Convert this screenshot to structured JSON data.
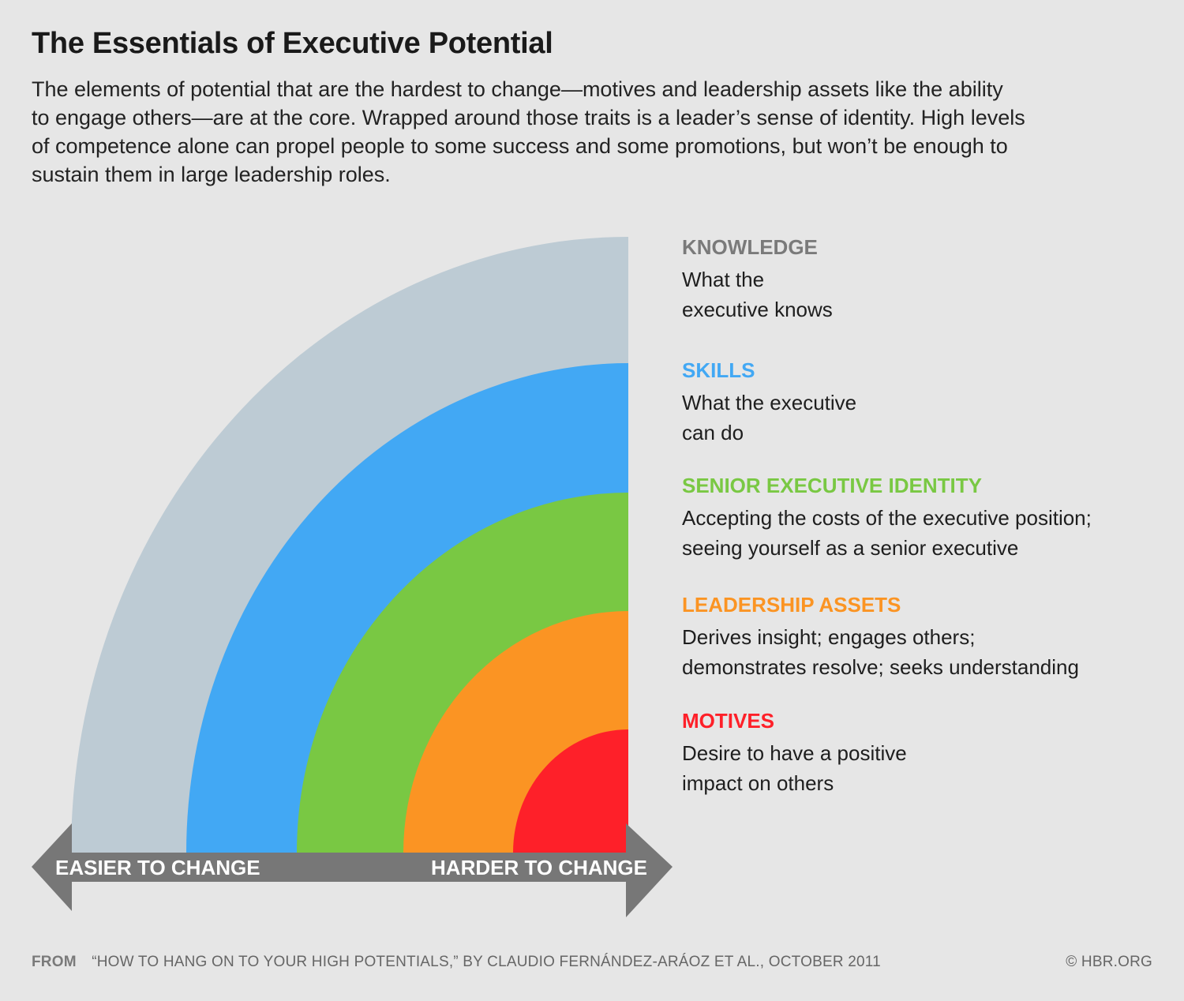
{
  "title": "The Essentials of Executive Potential",
  "subtitle": "The elements of potential that are the hardest to change—motives and leadership assets like the ability to engage others—are at the core. Wrapped around those traits is a leader’s sense of identity. High levels of competence alone can propel people to some success and some promotions, but won’t be enough to sustain them in large leadership roles.",
  "layers": [
    {
      "name": "KNOWLEDGE",
      "line1": "What the",
      "line2": "executive knows",
      "color": "#bdcbd4",
      "label_color": "#7a7a7a"
    },
    {
      "name": "SKILLS",
      "line1": "What the executive",
      "line2": "can do",
      "color": "#42a8f4",
      "label_color": "#42a8f4"
    },
    {
      "name": "SENIOR EXECUTIVE IDENTITY",
      "line1": "Accepting the costs of the executive position;",
      "line2": "seeing yourself as a senior executive",
      "color": "#79c843",
      "label_color": "#79c843"
    },
    {
      "name": "LEADERSHIP ASSETS",
      "line1": "Derives insight; engages others;",
      "line2": "demonstrates resolve; seeks understanding",
      "color": "#fb9423",
      "label_color": "#fb9423"
    },
    {
      "name": "MOTIVES",
      "line1": "Desire to have a positive",
      "line2": "impact on others",
      "color": "#fe2029",
      "label_color": "#fe2029"
    }
  ],
  "arrow": {
    "left_label": "EASIER TO CHANGE",
    "right_label": "HARDER TO CHANGE",
    "color": "#777777"
  },
  "footer": {
    "from_label": "FROM",
    "source": "“HOW TO HANG ON TO YOUR HIGH POTENTIALS,” BY CLAUDIO FERNÁNDEZ-ARÁOZ ET AL., OCTOBER 2011",
    "copyright": "© HBR.ORG"
  }
}
